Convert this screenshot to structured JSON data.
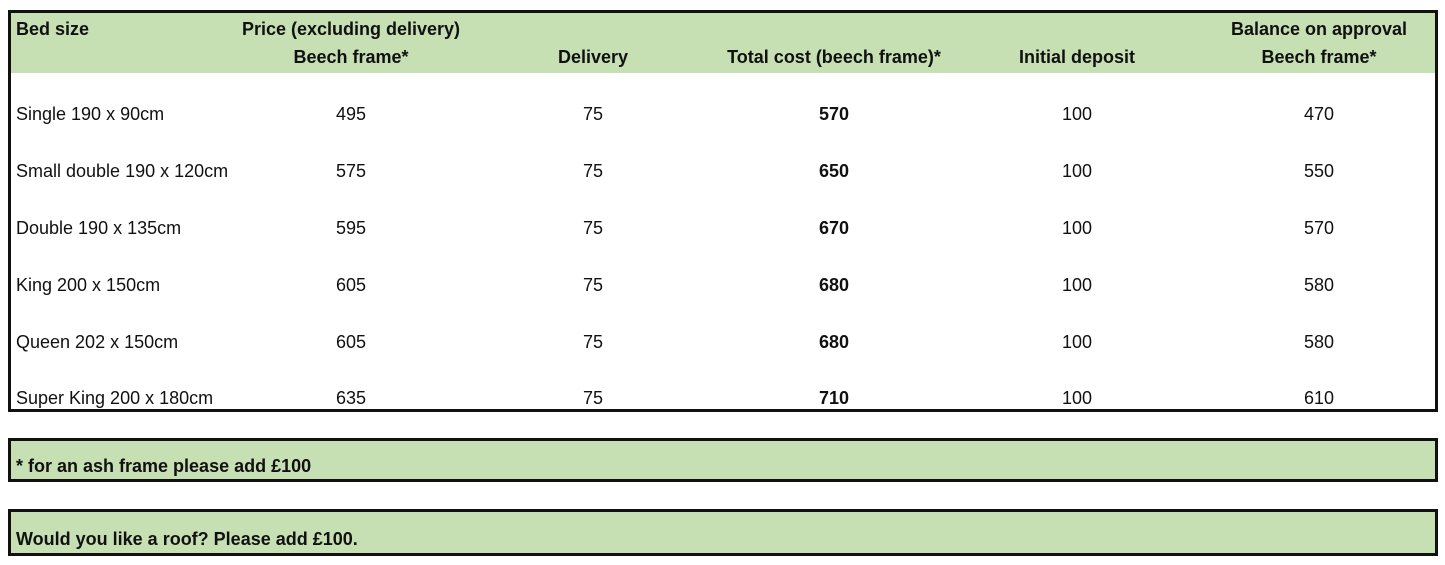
{
  "table": {
    "headers": {
      "bed_size": "Bed size",
      "price_line1": "Price (excluding delivery)",
      "price_line2": "Beech frame*",
      "delivery": "Delivery",
      "total_cost": "Total cost (beech frame)*",
      "initial_deposit": "Initial deposit",
      "balance_line1": "Balance on approval",
      "balance_line2": "Beech frame*"
    },
    "rows": [
      {
        "size": "Single 190 x 90cm",
        "price": "495",
        "delivery": "75",
        "total": "570",
        "deposit": "100",
        "balance": "470"
      },
      {
        "size": "Small double 190 x 120cm",
        "price": "575",
        "delivery": "75",
        "total": "650",
        "deposit": "100",
        "balance": "550"
      },
      {
        "size": "Double 190 x 135cm",
        "price": "595",
        "delivery": "75",
        "total": "670",
        "deposit": "100",
        "balance": "570"
      },
      {
        "size": "King 200 x 150cm",
        "price": "605",
        "delivery": "75",
        "total": "680",
        "deposit": "100",
        "balance": "580"
      },
      {
        "size": "Queen 202 x 150cm",
        "price": "605",
        "delivery": "75",
        "total": "680",
        "deposit": "100",
        "balance": "580"
      },
      {
        "size": "Super King 200 x 180cm",
        "price": "635",
        "delivery": "75",
        "total": "710",
        "deposit": "100",
        "balance": "610"
      }
    ]
  },
  "notes": {
    "ash_frame": "* for an ash frame please add £100",
    "roof": "Would you like a roof? Please add £100."
  },
  "colors": {
    "header_fill": "#c6e0b4",
    "border": "#111111"
  }
}
